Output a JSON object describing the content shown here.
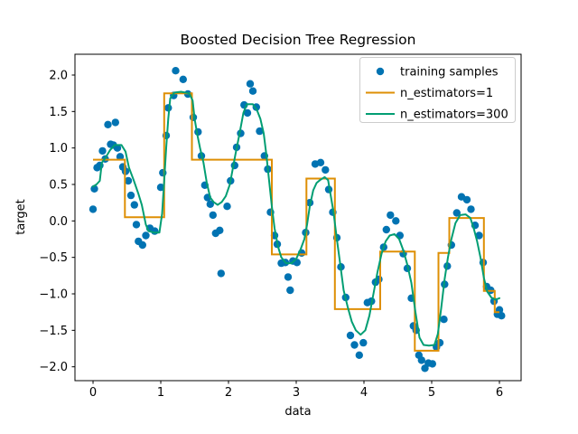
{
  "chart_data": {
    "type": "scatter",
    "title": "Boosted Decision Tree Regression",
    "xlabel": "data",
    "ylabel": "target",
    "xlim": [
      -0.267,
      6.32
    ],
    "ylim": [
      -2.19,
      2.285
    ],
    "grid": false,
    "xticks": [
      0,
      1,
      2,
      3,
      4,
      5,
      6
    ],
    "xtick_labels": [
      "0",
      "1",
      "2",
      "3",
      "4",
      "5",
      "6"
    ],
    "yticks": [
      2.0,
      1.5,
      1.0,
      0.5,
      0.0,
      -0.5,
      -1.0,
      -1.5,
      -2.0
    ],
    "ytick_labels": [
      "2.0",
      "1.5",
      "1.0",
      "0.5",
      "0.0",
      "−0.5",
      "−1.0",
      "−1.5",
      "−2.0"
    ],
    "legend": {
      "position": "upper right",
      "entries": [
        {
          "label": "training samples",
          "type": "scatter",
          "color": "#0173b2"
        },
        {
          "label": "n_estimators=1",
          "type": "line",
          "color": "#de8f05"
        },
        {
          "label": "n_estimators=300",
          "type": "line",
          "color": "#029e73"
        }
      ]
    },
    "series": [
      {
        "name": "training samples",
        "type": "scatter",
        "color": "#0173b2",
        "marker_radius": 4.2,
        "points": [
          [
            0.0,
            0.16
          ],
          [
            0.02,
            0.44
          ],
          [
            0.06,
            0.73
          ],
          [
            0.1,
            0.76
          ],
          [
            0.14,
            0.96
          ],
          [
            0.18,
            0.85
          ],
          [
            0.22,
            1.32
          ],
          [
            0.26,
            1.05
          ],
          [
            0.3,
            1.04
          ],
          [
            0.33,
            1.35
          ],
          [
            0.36,
            1.0
          ],
          [
            0.4,
            0.88
          ],
          [
            0.44,
            0.74
          ],
          [
            0.48,
            0.68
          ],
          [
            0.52,
            0.55
          ],
          [
            0.56,
            0.35
          ],
          [
            0.61,
            0.22
          ],
          [
            0.64,
            -0.05
          ],
          [
            0.67,
            -0.28
          ],
          [
            0.73,
            -0.33
          ],
          [
            0.78,
            -0.2
          ],
          [
            0.84,
            -0.1
          ],
          [
            0.91,
            -0.14
          ],
          [
            1.0,
            0.46
          ],
          [
            1.03,
            0.66
          ],
          [
            1.08,
            1.17
          ],
          [
            1.11,
            1.55
          ],
          [
            1.19,
            1.72
          ],
          [
            1.22,
            2.06
          ],
          [
            1.33,
            1.94
          ],
          [
            1.4,
            1.74
          ],
          [
            1.48,
            1.42
          ],
          [
            1.55,
            1.22
          ],
          [
            1.6,
            0.89
          ],
          [
            1.65,
            0.49
          ],
          [
            1.69,
            0.32
          ],
          [
            1.73,
            0.23
          ],
          [
            1.77,
            0.08
          ],
          [
            1.81,
            -0.17
          ],
          [
            1.87,
            -0.13
          ],
          [
            1.89,
            -0.72
          ],
          [
            1.98,
            0.2
          ],
          [
            2.03,
            0.55
          ],
          [
            2.09,
            0.76
          ],
          [
            2.12,
            1.01
          ],
          [
            2.18,
            1.2
          ],
          [
            2.23,
            1.59
          ],
          [
            2.28,
            1.48
          ],
          [
            2.32,
            1.88
          ],
          [
            2.36,
            1.78
          ],
          [
            2.41,
            1.56
          ],
          [
            2.46,
            1.23
          ],
          [
            2.53,
            0.89
          ],
          [
            2.58,
            0.71
          ],
          [
            2.62,
            0.12
          ],
          [
            2.68,
            -0.2
          ],
          [
            2.72,
            -0.32
          ],
          [
            2.78,
            -0.58
          ],
          [
            2.84,
            -0.57
          ],
          [
            2.88,
            -0.77
          ],
          [
            2.91,
            -0.95
          ],
          [
            2.95,
            -0.55
          ],
          [
            3.01,
            -0.57
          ],
          [
            3.08,
            -0.44
          ],
          [
            3.14,
            -0.16
          ],
          [
            3.2,
            0.25
          ],
          [
            3.28,
            0.78
          ],
          [
            3.36,
            0.8
          ],
          [
            3.43,
            0.7
          ],
          [
            3.48,
            0.43
          ],
          [
            3.54,
            0.12
          ],
          [
            3.6,
            -0.23
          ],
          [
            3.66,
            -0.63
          ],
          [
            3.73,
            -1.05
          ],
          [
            3.8,
            -1.57
          ],
          [
            3.86,
            -1.7
          ],
          [
            3.93,
            -1.84
          ],
          [
            3.99,
            -1.67
          ],
          [
            4.05,
            -1.12
          ],
          [
            4.11,
            -1.1
          ],
          [
            4.17,
            -0.84
          ],
          [
            4.22,
            -0.8
          ],
          [
            4.29,
            -0.36
          ],
          [
            4.33,
            -0.12
          ],
          [
            4.39,
            0.08
          ],
          [
            4.47,
            0.0
          ],
          [
            4.53,
            -0.2
          ],
          [
            4.58,
            -0.45
          ],
          [
            4.64,
            -0.65
          ],
          [
            4.7,
            -1.06
          ],
          [
            4.73,
            -1.44
          ],
          [
            4.77,
            -1.5
          ],
          [
            4.81,
            -1.84
          ],
          [
            4.85,
            -1.91
          ],
          [
            4.9,
            -2.02
          ],
          [
            4.95,
            -1.95
          ],
          [
            5.01,
            -1.96
          ],
          [
            5.07,
            -1.73
          ],
          [
            5.12,
            -1.67
          ],
          [
            5.18,
            -1.35
          ],
          [
            5.19,
            -0.87
          ],
          [
            5.23,
            -0.62
          ],
          [
            5.29,
            -0.33
          ],
          [
            5.37,
            0.11
          ],
          [
            5.44,
            0.33
          ],
          [
            5.52,
            0.29
          ],
          [
            5.58,
            0.16
          ],
          [
            5.64,
            -0.06
          ],
          [
            5.7,
            -0.2
          ],
          [
            5.76,
            -0.57
          ],
          [
            5.81,
            -0.9
          ],
          [
            5.87,
            -0.95
          ],
          [
            5.92,
            -1.1
          ],
          [
            5.97,
            -1.28
          ],
          [
            6.0,
            -1.22
          ],
          [
            6.03,
            -1.3
          ]
        ]
      },
      {
        "name": "n_estimators=1",
        "type": "step",
        "color": "#de8f05",
        "linewidth": 2,
        "steps": [
          [
            0.0,
            0.47,
            0.84
          ],
          [
            0.47,
            1.05,
            0.05
          ],
          [
            1.05,
            1.46,
            1.75
          ],
          [
            1.46,
            2.64,
            0.84
          ],
          [
            2.64,
            3.15,
            -0.46
          ],
          [
            3.15,
            3.57,
            0.58
          ],
          [
            3.57,
            4.24,
            -1.21
          ],
          [
            4.24,
            4.75,
            -0.42
          ],
          [
            4.75,
            5.1,
            -1.78
          ],
          [
            5.1,
            5.26,
            -0.44
          ],
          [
            5.26,
            5.77,
            0.04
          ],
          [
            5.77,
            5.93,
            -0.96
          ],
          [
            5.93,
            6.0,
            -1.25
          ]
        ]
      },
      {
        "name": "n_estimators=300",
        "type": "line",
        "color": "#029e73",
        "linewidth": 2,
        "points": [
          [
            0.0,
            0.47
          ],
          [
            0.05,
            0.5
          ],
          [
            0.1,
            0.55
          ],
          [
            0.13,
            0.8
          ],
          [
            0.18,
            0.86
          ],
          [
            0.25,
            0.97
          ],
          [
            0.32,
            1.04
          ],
          [
            0.42,
            1.04
          ],
          [
            0.48,
            0.95
          ],
          [
            0.53,
            0.73
          ],
          [
            0.6,
            0.56
          ],
          [
            0.67,
            0.37
          ],
          [
            0.72,
            0.22
          ],
          [
            0.78,
            -0.05
          ],
          [
            0.82,
            -0.14
          ],
          [
            0.9,
            -0.16
          ],
          [
            0.98,
            -0.16
          ],
          [
            1.02,
            0.1
          ],
          [
            1.05,
            0.55
          ],
          [
            1.08,
            1.0
          ],
          [
            1.11,
            1.4
          ],
          [
            1.14,
            1.68
          ],
          [
            1.2,
            1.76
          ],
          [
            1.3,
            1.77
          ],
          [
            1.42,
            1.75
          ],
          [
            1.47,
            1.65
          ],
          [
            1.5,
            1.4
          ],
          [
            1.54,
            1.18
          ],
          [
            1.58,
            1.0
          ],
          [
            1.63,
            0.8
          ],
          [
            1.68,
            0.52
          ],
          [
            1.73,
            0.32
          ],
          [
            1.78,
            0.26
          ],
          [
            1.84,
            0.22
          ],
          [
            1.9,
            0.26
          ],
          [
            1.96,
            0.34
          ],
          [
            2.02,
            0.5
          ],
          [
            2.06,
            0.7
          ],
          [
            2.1,
            0.9
          ],
          [
            2.16,
            1.18
          ],
          [
            2.22,
            1.48
          ],
          [
            2.27,
            1.6
          ],
          [
            2.36,
            1.6
          ],
          [
            2.42,
            1.52
          ],
          [
            2.47,
            1.4
          ],
          [
            2.52,
            1.2
          ],
          [
            2.56,
            0.9
          ],
          [
            2.6,
            0.55
          ],
          [
            2.64,
            0.2
          ],
          [
            2.68,
            -0.1
          ],
          [
            2.73,
            -0.35
          ],
          [
            2.78,
            -0.5
          ],
          [
            2.85,
            -0.58
          ],
          [
            2.93,
            -0.58
          ],
          [
            3.0,
            -0.52
          ],
          [
            3.06,
            -0.4
          ],
          [
            3.12,
            -0.25
          ],
          [
            3.16,
            -0.05
          ],
          [
            3.2,
            0.2
          ],
          [
            3.25,
            0.42
          ],
          [
            3.3,
            0.52
          ],
          [
            3.35,
            0.56
          ],
          [
            3.42,
            0.6
          ],
          [
            3.47,
            0.56
          ],
          [
            3.5,
            0.4
          ],
          [
            3.55,
            0.12
          ],
          [
            3.6,
            -0.25
          ],
          [
            3.65,
            -0.6
          ],
          [
            3.7,
            -0.95
          ],
          [
            3.76,
            -1.18
          ],
          [
            3.82,
            -1.38
          ],
          [
            3.88,
            -1.5
          ],
          [
            3.95,
            -1.56
          ],
          [
            4.02,
            -1.5
          ],
          [
            4.08,
            -1.3
          ],
          [
            4.14,
            -1.0
          ],
          [
            4.2,
            -0.7
          ],
          [
            4.26,
            -0.45
          ],
          [
            4.32,
            -0.28
          ],
          [
            4.38,
            -0.2
          ],
          [
            4.45,
            -0.18
          ],
          [
            4.52,
            -0.25
          ],
          [
            4.58,
            -0.4
          ],
          [
            4.64,
            -0.6
          ],
          [
            4.7,
            -0.85
          ],
          [
            4.76,
            -1.25
          ],
          [
            4.82,
            -1.6
          ],
          [
            4.88,
            -1.7
          ],
          [
            4.96,
            -1.71
          ],
          [
            5.04,
            -1.7
          ],
          [
            5.09,
            -1.55
          ],
          [
            5.14,
            -1.2
          ],
          [
            5.19,
            -0.8
          ],
          [
            5.24,
            -0.5
          ],
          [
            5.29,
            -0.25
          ],
          [
            5.35,
            -0.03
          ],
          [
            5.42,
            0.08
          ],
          [
            5.5,
            0.09
          ],
          [
            5.57,
            0.04
          ],
          [
            5.62,
            -0.1
          ],
          [
            5.67,
            -0.28
          ],
          [
            5.72,
            -0.5
          ],
          [
            5.77,
            -0.78
          ],
          [
            5.82,
            -0.97
          ],
          [
            5.88,
            -1.05
          ],
          [
            5.94,
            -1.08
          ],
          [
            6.0,
            -1.06
          ]
        ]
      }
    ]
  }
}
